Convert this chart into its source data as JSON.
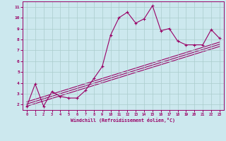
{
  "xlabel": "Windchill (Refroidissement éolien,°C)",
  "bg_color": "#cce8ee",
  "line_color": "#990066",
  "grid_color": "#aacccc",
  "xlim": [
    -0.5,
    23.5
  ],
  "ylim": [
    1.5,
    11.5
  ],
  "xticks": [
    0,
    1,
    2,
    3,
    4,
    5,
    6,
    7,
    8,
    9,
    10,
    11,
    12,
    13,
    14,
    15,
    16,
    17,
    18,
    19,
    20,
    21,
    22,
    23
  ],
  "yticks": [
    2,
    3,
    4,
    5,
    6,
    7,
    8,
    9,
    10,
    11
  ],
  "data_x": [
    0,
    1,
    2,
    3,
    4,
    5,
    6,
    7,
    8,
    9,
    10,
    11,
    12,
    13,
    14,
    15,
    16,
    17,
    18,
    19,
    20,
    21,
    22,
    23
  ],
  "data_y": [
    1.85,
    3.9,
    1.85,
    3.2,
    2.75,
    2.6,
    2.6,
    3.3,
    4.4,
    5.5,
    8.4,
    10.0,
    10.5,
    9.5,
    9.9,
    11.1,
    8.8,
    9.0,
    7.85,
    7.5,
    7.5,
    7.5,
    8.9,
    8.1
  ],
  "reg_line1": [
    [
      0,
      23
    ],
    [
      2.05,
      7.55
    ]
  ],
  "reg_line2": [
    [
      0,
      23
    ],
    [
      2.25,
      7.75
    ]
  ],
  "reg_line3": [
    [
      0,
      23
    ],
    [
      1.85,
      7.35
    ]
  ]
}
